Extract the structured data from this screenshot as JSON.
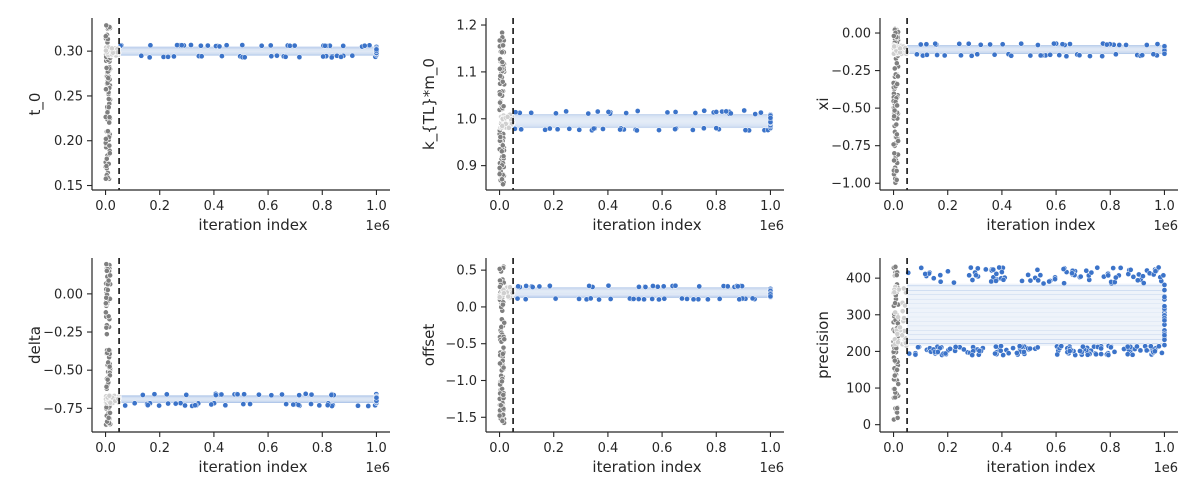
{
  "colors": {
    "burnin_points": "#7f7f7f",
    "burnin_edge": "#ffffff",
    "sample_points": "#3b73c9",
    "sample_edge": "#ffffff",
    "sample_band": "#eef3fa",
    "axis": "#262626",
    "burnin_marker": "#111111"
  },
  "chart_data": [
    {
      "type": "scatter",
      "xlabel": "iteration index",
      "ylabel": "t_0",
      "x_sci_label": "1e6",
      "x_ticks": [
        0.0,
        0.2,
        0.4,
        0.6,
        0.8,
        1.0
      ],
      "x_tick_labels": [
        "0.0",
        "0.2",
        "0.4",
        "0.6",
        "0.8",
        "1.0"
      ],
      "x_scale": 1000000,
      "xlim": [
        -0.05,
        1.05
      ],
      "y_ticks": [
        0.15,
        0.2,
        0.25,
        0.3
      ],
      "y_tick_labels": [
        "0.15",
        "0.20",
        "0.25",
        "0.30"
      ],
      "ylim": [
        0.145,
        0.337
      ],
      "burnin_iteration": 50000,
      "burnin_range": [
        0.153,
        0.33
      ],
      "samples": {
        "center": 0.3,
        "low": 0.295,
        "high": 0.305,
        "min": 0.293,
        "max": 0.307
      },
      "grid": false
    },
    {
      "type": "scatter",
      "xlabel": "iteration index",
      "ylabel": "k_{TL}*m_0",
      "x_sci_label": "1e6",
      "x_ticks": [
        0.0,
        0.2,
        0.4,
        0.6,
        0.8,
        1.0
      ],
      "x_tick_labels": [
        "0.0",
        "0.2",
        "0.4",
        "0.6",
        "0.8",
        "1.0"
      ],
      "x_scale": 1000000,
      "xlim": [
        -0.05,
        1.05
      ],
      "y_ticks": [
        0.9,
        1.0,
        1.1,
        1.2
      ],
      "y_tick_labels": [
        "0.9",
        "1.0",
        "1.1",
        "1.2"
      ],
      "ylim": [
        0.848,
        1.215
      ],
      "burnin_iteration": 50000,
      "burnin_range": [
        0.86,
        1.195
      ],
      "samples": {
        "center": 0.995,
        "low": 0.98,
        "high": 1.01,
        "min": 0.975,
        "max": 1.018
      },
      "grid": false
    },
    {
      "type": "scatter",
      "xlabel": "iteration index",
      "ylabel": "xi",
      "x_sci_label": "1e6",
      "x_ticks": [
        0.0,
        0.2,
        0.4,
        0.6,
        0.8,
        1.0
      ],
      "x_tick_labels": [
        "0.0",
        "0.2",
        "0.4",
        "0.6",
        "0.8",
        "1.0"
      ],
      "x_scale": 1000000,
      "xlim": [
        -0.05,
        1.05
      ],
      "y_ticks": [
        -1.0,
        -0.75,
        -0.5,
        -0.25,
        0.0
      ],
      "y_tick_labels": [
        "−1.00",
        "−0.75",
        "−0.50",
        "−0.25",
        "0.00"
      ],
      "ylim": [
        -1.045,
        0.1
      ],
      "burnin_iteration": 50000,
      "burnin_range": [
        -1.0,
        0.06
      ],
      "samples": {
        "center": -0.11,
        "low": -0.14,
        "high": -0.08,
        "min": -0.155,
        "max": -0.07
      },
      "grid": false
    },
    {
      "type": "scatter",
      "xlabel": "iteration index",
      "ylabel": "delta",
      "x_sci_label": "1e6",
      "x_ticks": [
        0.0,
        0.2,
        0.4,
        0.6,
        0.8,
        1.0
      ],
      "x_tick_labels": [
        "0.0",
        "0.2",
        "0.4",
        "0.6",
        "0.8",
        "1.0"
      ],
      "x_scale": 1000000,
      "xlim": [
        -0.05,
        1.05
      ],
      "y_ticks": [
        -0.75,
        -0.5,
        -0.25,
        0.0
      ],
      "y_tick_labels": [
        "−0.75",
        "−0.50",
        "−0.25",
        "0.00"
      ],
      "ylim": [
        -0.905,
        0.235
      ],
      "burnin_iteration": 50000,
      "burnin_range": [
        -0.86,
        0.2
      ],
      "samples": {
        "center": -0.69,
        "low": -0.715,
        "high": -0.665,
        "min": -0.735,
        "max": -0.655
      },
      "grid": false
    },
    {
      "type": "scatter",
      "xlabel": "iteration index",
      "ylabel": "offset",
      "x_sci_label": "1e6",
      "x_ticks": [
        0.0,
        0.2,
        0.4,
        0.6,
        0.8,
        1.0
      ],
      "x_tick_labels": [
        "0.0",
        "0.2",
        "0.4",
        "0.6",
        "0.8",
        "1.0"
      ],
      "x_scale": 1000000,
      "xlim": [
        -0.05,
        1.05
      ],
      "y_ticks": [
        -1.5,
        -1.0,
        -0.5,
        0.0,
        0.5
      ],
      "y_tick_labels": [
        "−1.5",
        "−1.0",
        "−0.5",
        "0.0",
        "0.5"
      ],
      "ylim": [
        -1.7,
        0.665
      ],
      "burnin_iteration": 50000,
      "burnin_range": [
        -1.58,
        0.57
      ],
      "samples": {
        "center": 0.2,
        "low": 0.12,
        "high": 0.27,
        "min": 0.1,
        "max": 0.29
      },
      "grid": false
    },
    {
      "type": "scatter",
      "xlabel": "iteration index",
      "ylabel": "precision",
      "x_sci_label": "1e6",
      "x_ticks": [
        0.0,
        0.2,
        0.4,
        0.6,
        0.8,
        1.0
      ],
      "x_tick_labels": [
        "0.0",
        "0.2",
        "0.4",
        "0.6",
        "0.8",
        "1.0"
      ],
      "x_scale": 1000000,
      "xlim": [
        -0.05,
        1.05
      ],
      "y_ticks": [
        0,
        100,
        200,
        300,
        400
      ],
      "y_tick_labels": [
        "0",
        "100",
        "200",
        "300",
        "400"
      ],
      "ylim": [
        -20,
        455
      ],
      "burnin_iteration": 50000,
      "burnin_range": [
        5,
        440
      ],
      "samples": {
        "center": 300,
        "low": 215,
        "high": 385,
        "min": 190,
        "max": 430
      },
      "grid": false
    }
  ]
}
